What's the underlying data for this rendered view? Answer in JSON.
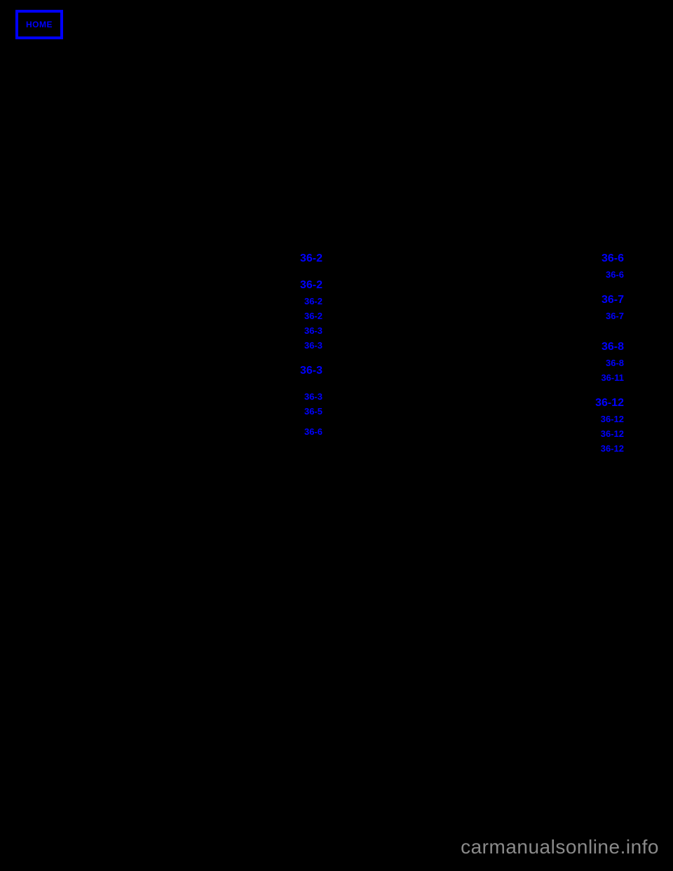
{
  "home_label": "HOME",
  "watermark": "carmanualsonline.info",
  "colors": {
    "background": "#000000",
    "link": "#0000ff",
    "watermark": "#8a8a8a"
  },
  "left_column": [
    {
      "size": "lg",
      "page": "36-2"
    },
    {
      "gap": "md"
    },
    {
      "size": "lg",
      "page": "36-2"
    },
    {
      "size": "sm",
      "page": "36-2"
    },
    {
      "size": "sm",
      "page": "36-2"
    },
    {
      "size": "sm",
      "page": "36-3"
    },
    {
      "size": "sm",
      "page": "36-3"
    },
    {
      "gap": "md"
    },
    {
      "size": "lg",
      "page": "36-3"
    },
    {
      "gap": "md"
    },
    {
      "size": "sm",
      "page": "36-3"
    },
    {
      "size": "sm",
      "page": "36-5"
    },
    {
      "gap": "sm"
    },
    {
      "size": "sm",
      "page": "36-6"
    }
  ],
  "right_column": [
    {
      "size": "lg",
      "page": "36-6"
    },
    {
      "size": "sm",
      "page": "36-6"
    },
    {
      "gap": "md"
    },
    {
      "size": "lg",
      "page": "36-7"
    },
    {
      "size": "sm",
      "page": "36-7"
    },
    {
      "gap": "lg"
    },
    {
      "size": "lg",
      "page": "36-8"
    },
    {
      "size": "sm",
      "page": "36-8"
    },
    {
      "size": "sm",
      "page": "36-11"
    },
    {
      "gap": "md"
    },
    {
      "size": "lg",
      "page": "36-12"
    },
    {
      "size": "sm",
      "page": "36-12"
    },
    {
      "size": "sm",
      "page": "36-12"
    },
    {
      "size": "sm",
      "page": "36-12"
    }
  ]
}
